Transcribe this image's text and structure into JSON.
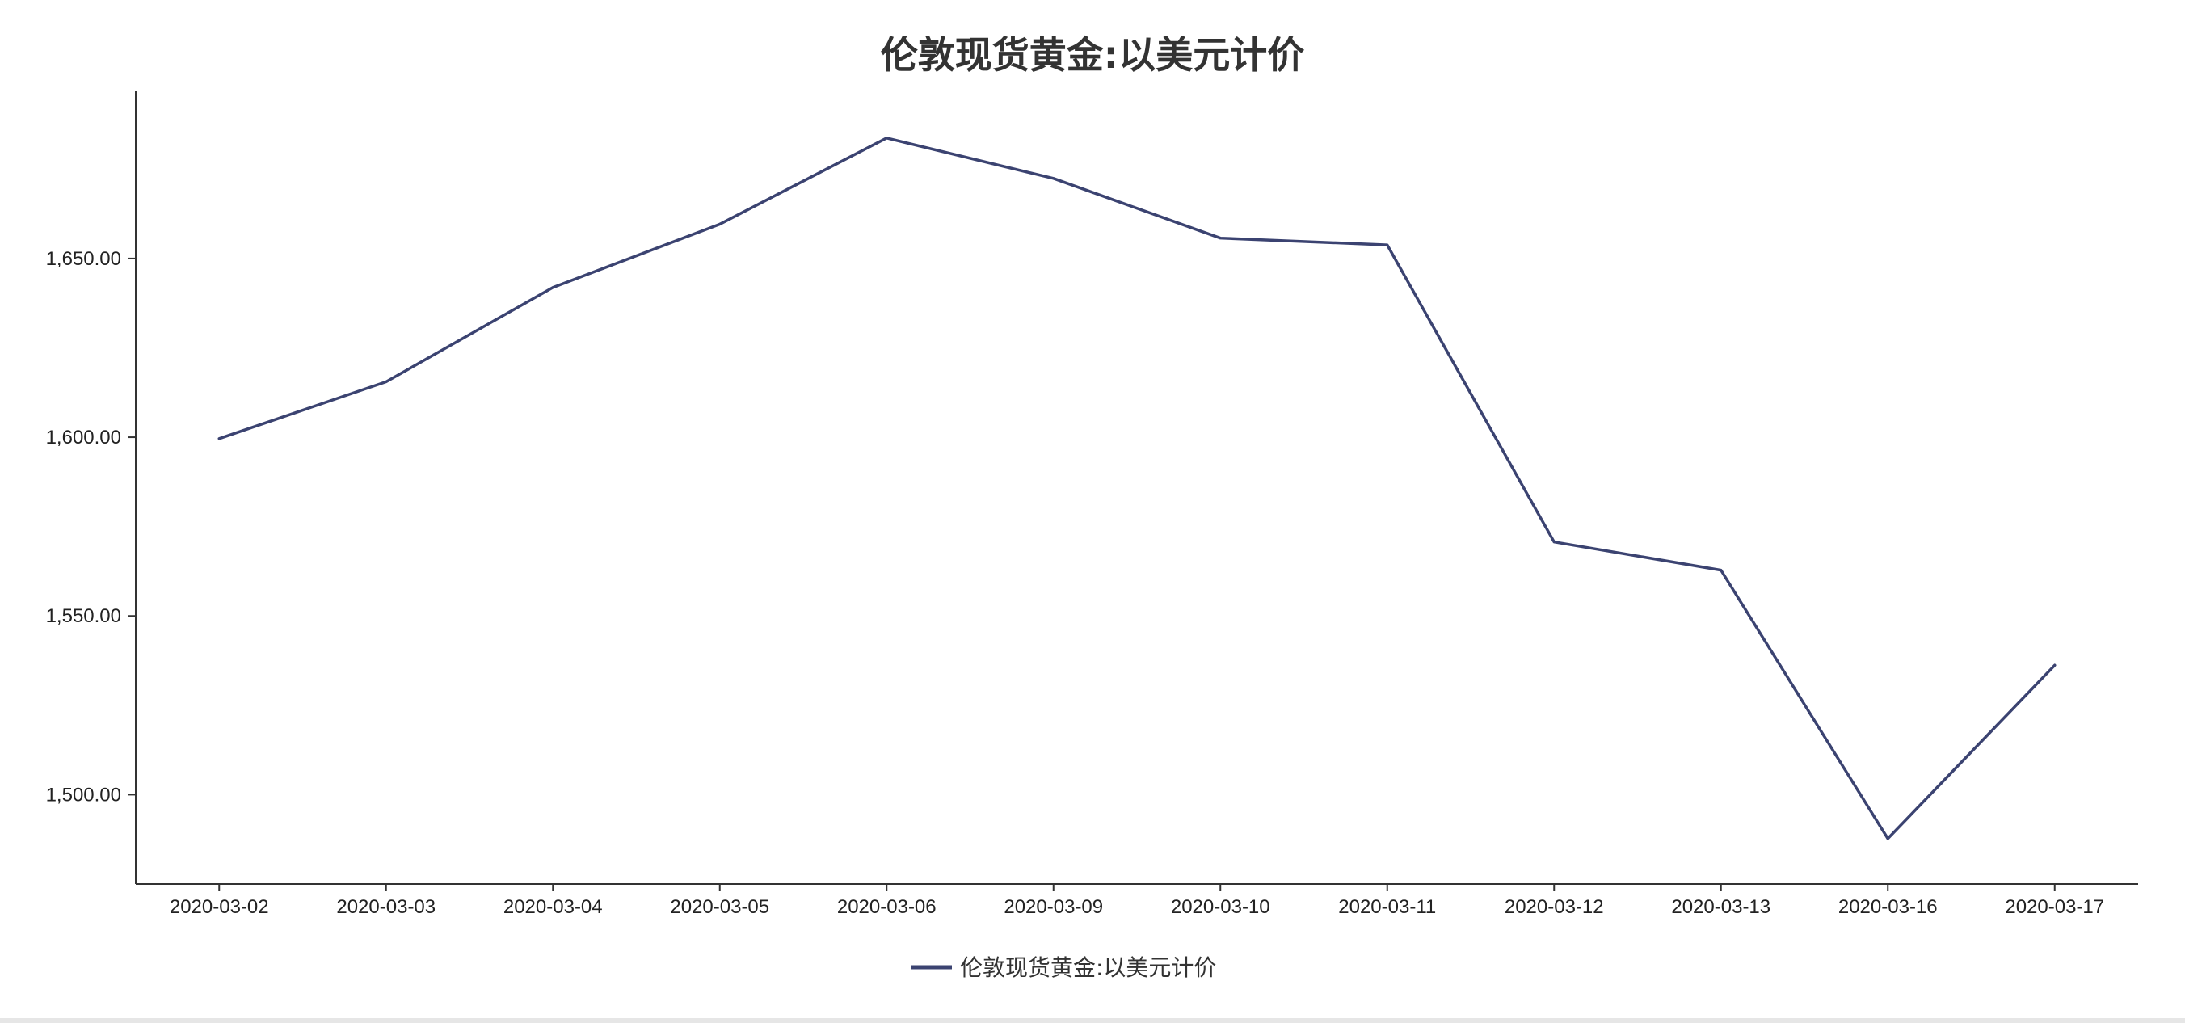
{
  "chart_data": {
    "type": "line",
    "title": "伦敦现货黄金:以美元计价",
    "xlabel": "",
    "ylabel": "",
    "categories": [
      "2020-03-02",
      "2020-03-03",
      "2020-03-04",
      "2020-03-05",
      "2020-03-06",
      "2020-03-09",
      "2020-03-10",
      "2020-03-11",
      "2020-03-12",
      "2020-03-13",
      "2020-03-16",
      "2020-03-17"
    ],
    "series": [
      {
        "name": "伦敦现货黄金:以美元计价",
        "color": "#3b4371",
        "values": [
          1599.6,
          1615.5,
          1641.9,
          1659.6,
          1683.7,
          1672.4,
          1655.7,
          1653.8,
          1570.7,
          1562.8,
          1487.7,
          1536.2
        ]
      }
    ],
    "yticks": [
      1500,
      1550,
      1600,
      1650
    ],
    "ytick_labels": [
      "1,500.00",
      "1,550.00",
      "1,600.00",
      "1,650.00"
    ],
    "ylim": [
      1475,
      1697
    ],
    "grid": false,
    "legend_position": "bottom-center"
  }
}
